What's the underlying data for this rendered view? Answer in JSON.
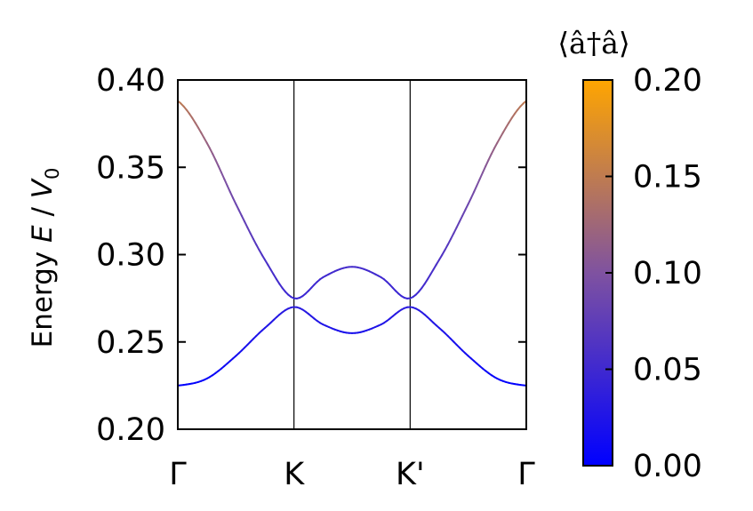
{
  "chart_data": {
    "type": "line",
    "title": "",
    "ylabel": {
      "prefix": "Energy ",
      "E": "E",
      "slash": " / ",
      "V": "V",
      "sub": "0"
    },
    "ylim": [
      0.2,
      0.4
    ],
    "yticks": [
      "0.20",
      "0.25",
      "0.30",
      "0.35",
      "0.40"
    ],
    "ytick_values": [
      0.2,
      0.25,
      0.3,
      0.35,
      0.4
    ],
    "xticks": [
      "Γ",
      "K",
      "K'",
      "Γ"
    ],
    "xtick_values": [
      0,
      1,
      2,
      3
    ],
    "xlim": [
      0,
      3
    ],
    "vertical_lines_at": [
      1,
      2
    ],
    "grid": false,
    "series": [
      {
        "x": [
          0,
          0.25,
          0.5,
          0.75,
          1.0,
          1.25,
          1.5,
          1.75,
          2.0,
          2.25,
          2.5,
          2.75,
          3.0
        ],
        "y": [
          0.388,
          0.364,
          0.329,
          0.297,
          0.275,
          0.287,
          0.293,
          0.287,
          0.275,
          0.297,
          0.329,
          0.364,
          0.388
        ],
        "occupation": [
          0.15,
          0.12,
          0.085,
          0.06,
          0.045,
          0.05,
          0.055,
          0.05,
          0.045,
          0.06,
          0.085,
          0.12,
          0.15
        ]
      },
      {
        "x": [
          0,
          0.25,
          0.5,
          0.75,
          1.0,
          1.25,
          1.5,
          1.75,
          2.0,
          2.25,
          2.5,
          2.75,
          3.0
        ],
        "y": [
          0.225,
          0.229,
          0.242,
          0.258,
          0.27,
          0.26,
          0.255,
          0.26,
          0.27,
          0.258,
          0.242,
          0.229,
          0.225
        ],
        "occupation": [
          0.0,
          0.005,
          0.015,
          0.025,
          0.035,
          0.025,
          0.02,
          0.025,
          0.035,
          0.025,
          0.015,
          0.005,
          0.0
        ]
      }
    ],
    "colorbar": {
      "title": "⟨â†â⟩",
      "range": [
        0.0,
        0.2
      ],
      "ticks": [
        "0.00",
        "0.05",
        "0.10",
        "0.15",
        "0.20"
      ],
      "tick_values": [
        0.0,
        0.05,
        0.1,
        0.15,
        0.2
      ],
      "colormap": [
        "#0000ff",
        "#7f52a0",
        "#ffa500"
      ]
    }
  }
}
